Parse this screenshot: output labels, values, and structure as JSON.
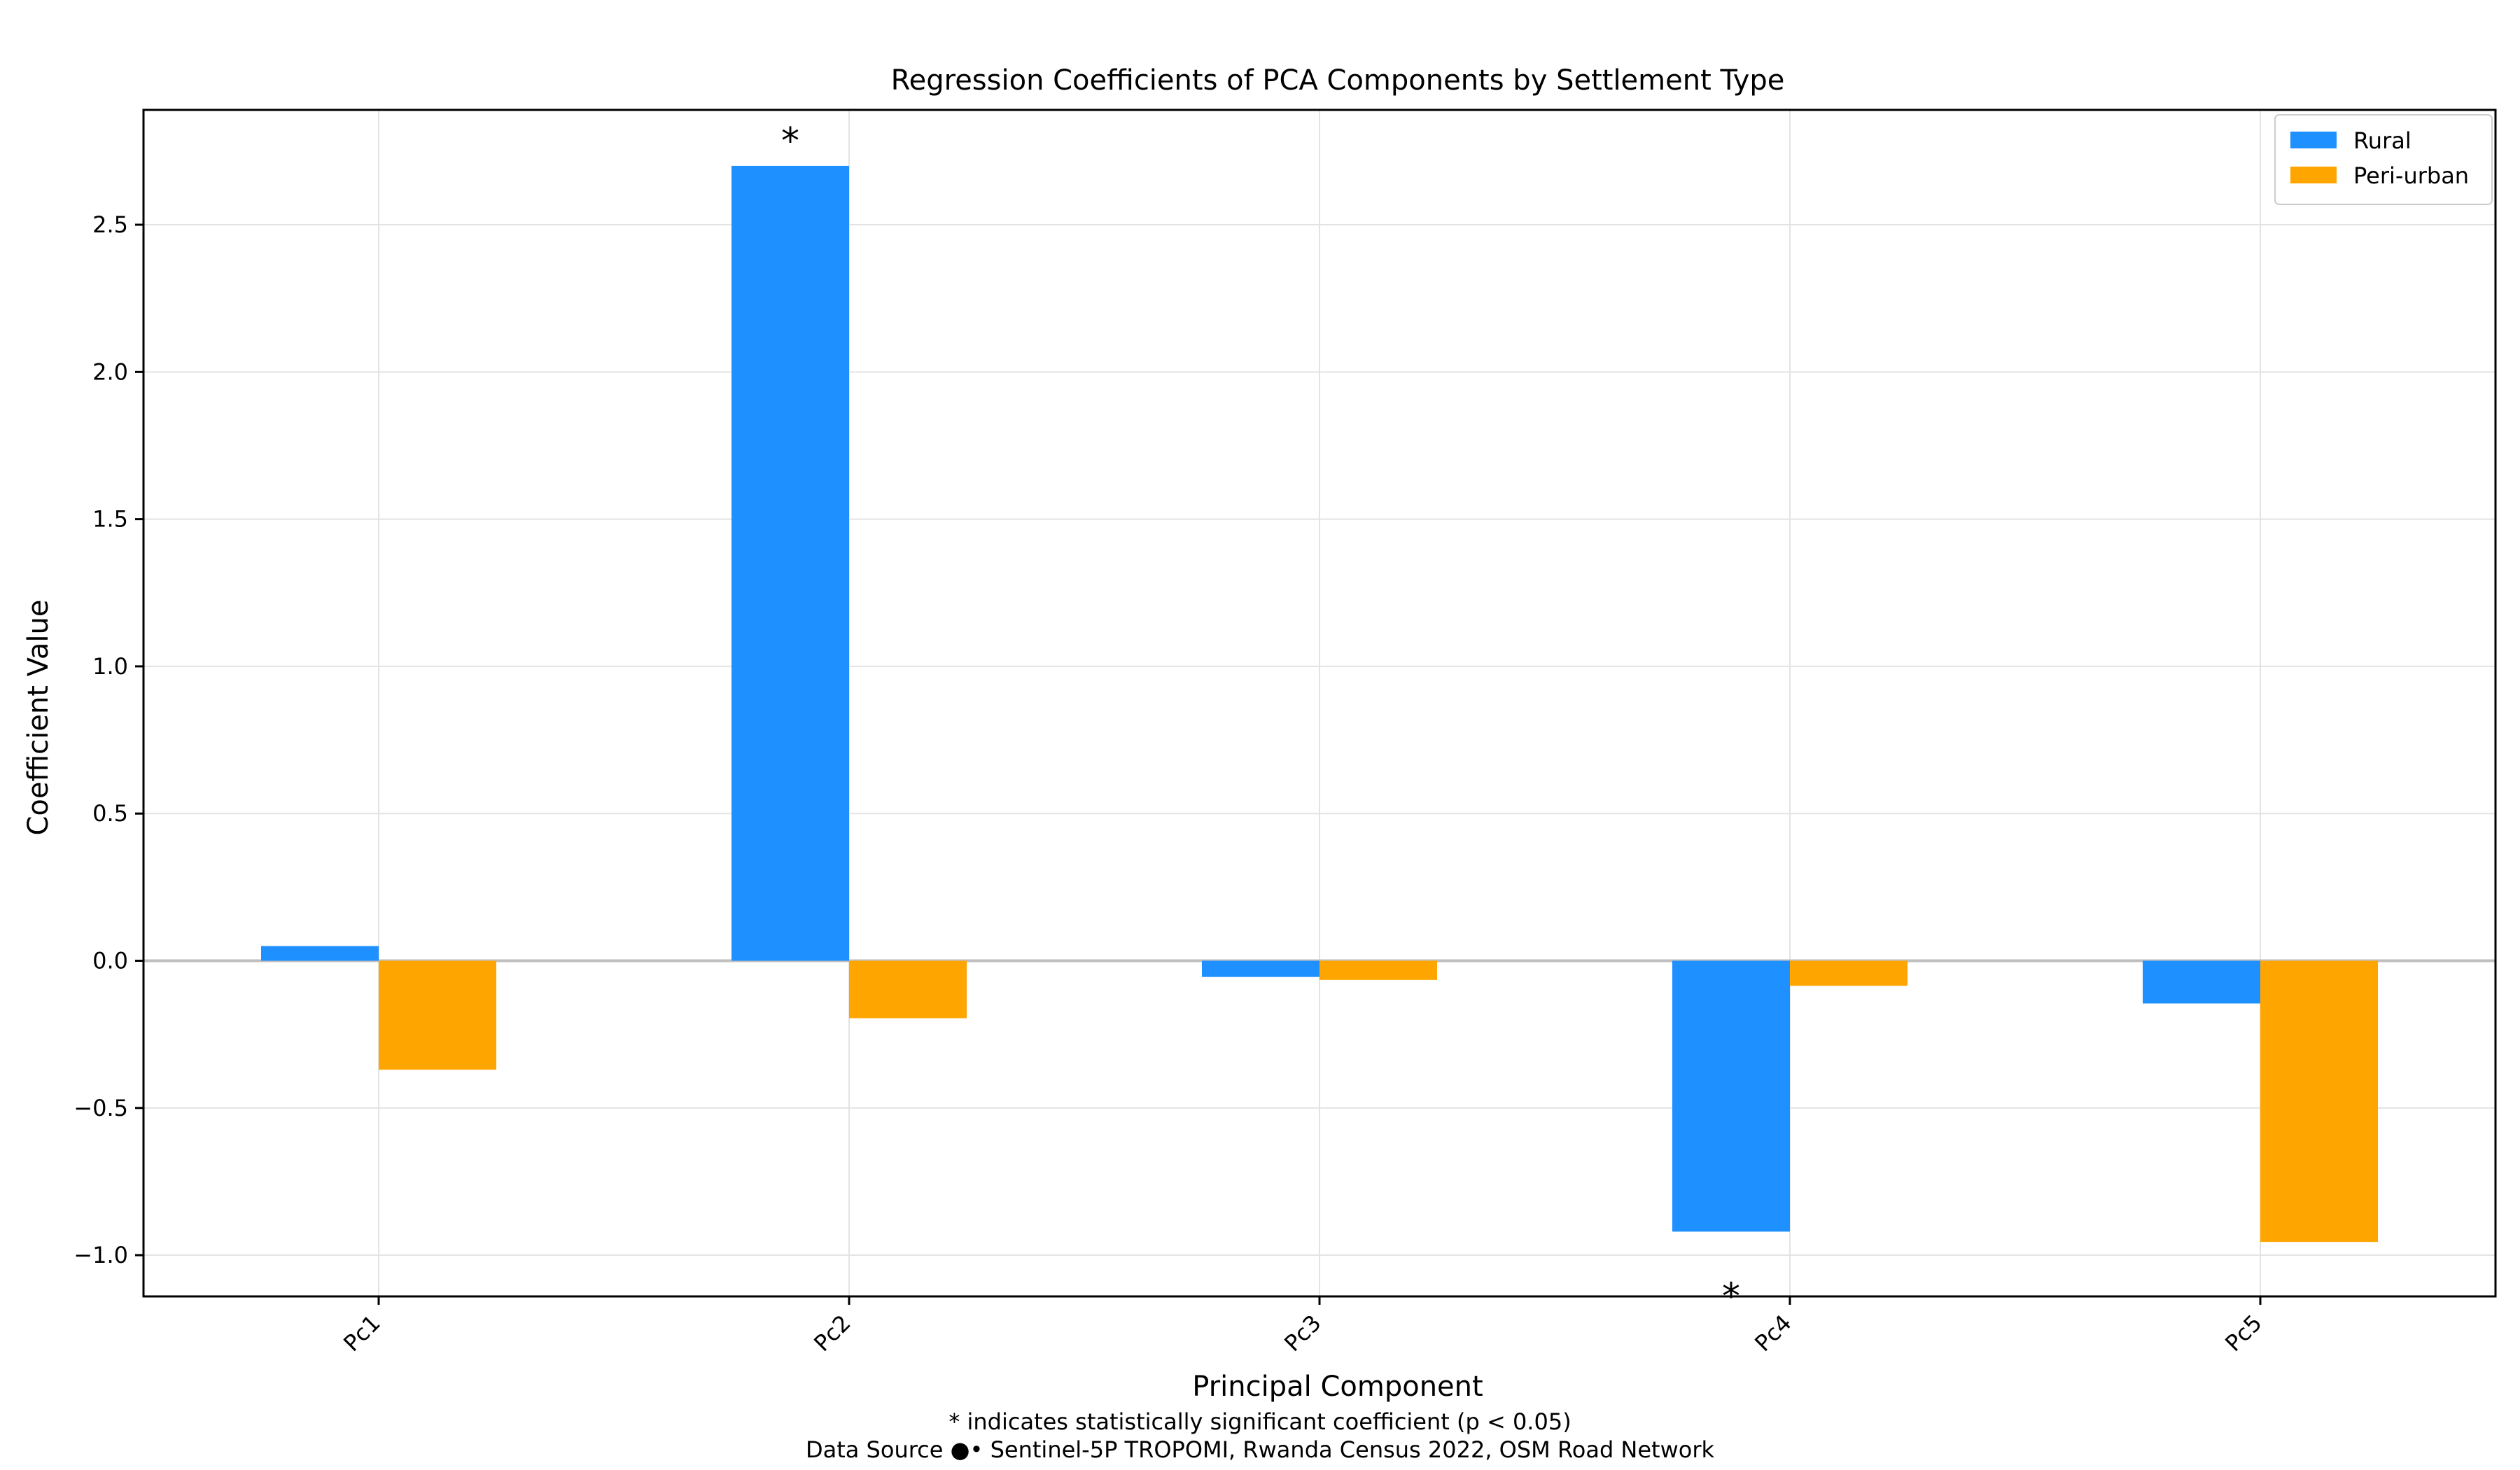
{
  "chart_data": {
    "type": "bar",
    "title": "Regression Coefficients of PCA Components by Settlement Type",
    "xlabel": "Principal Component",
    "ylabel": "Coefficient Value",
    "categories": [
      "Pc1",
      "Pc2",
      "Pc3",
      "Pc4",
      "Pc5"
    ],
    "series": [
      {
        "name": "Rural",
        "color": "#1e90ff",
        "values": [
          0.05,
          2.7,
          -0.055,
          -0.92,
          -0.145
        ]
      },
      {
        "name": "Peri-urban",
        "color": "#ffa500",
        "values": [
          -0.37,
          -0.195,
          -0.065,
          -0.085,
          -0.955
        ]
      }
    ],
    "ylim": [
      -1.14,
      2.89
    ],
    "yticks": [
      -1.0,
      -0.5,
      0.0,
      0.5,
      1.0,
      1.5,
      2.0,
      2.5
    ],
    "ytick_labels": [
      "−1.0",
      "−0.5",
      "0.0",
      "0.5",
      "1.0",
      "1.5",
      "2.0",
      "2.5"
    ],
    "grid": true,
    "legend_position": "top-right",
    "significance_markers": [
      {
        "category": "Pc2",
        "series": "Rural",
        "symbol": "*"
      },
      {
        "category": "Pc4",
        "series": "Rural",
        "symbol": "*"
      }
    ],
    "footnotes": [
      "* indicates statistically significant coefficient (p < 0.05)",
      "Data Source ●• Sentinel-5P TROPOMI, Rwanda Census 2022, OSM Road Network"
    ]
  }
}
